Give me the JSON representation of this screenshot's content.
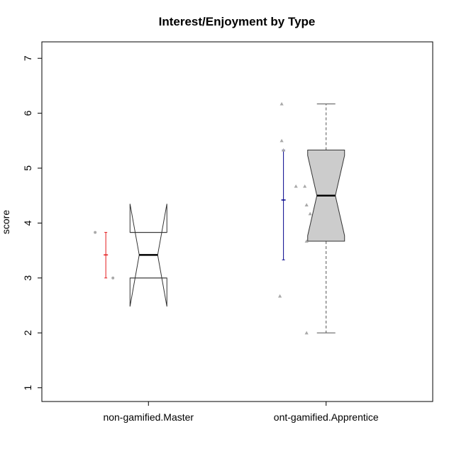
{
  "chart_data": {
    "type": "boxplot",
    "title": "Interest/Enjoyment by Type",
    "xlabel": "",
    "ylabel": "score",
    "ylim": [
      0.75,
      7.3
    ],
    "yticks": [
      1,
      2,
      3,
      4,
      5,
      6,
      7
    ],
    "categories": [
      "non-gamified.Master",
      "ont-gamified.Apprentice"
    ],
    "boxes": [
      {
        "category": "non-gamified.Master",
        "notched": true,
        "fill": "#ffffff",
        "stats": {
          "min": 3.0,
          "q1": 3.0,
          "median": 3.42,
          "q3": 3.83,
          "max": 3.83
        },
        "notch": [
          2.48,
          4.35
        ]
      },
      {
        "category": "ont-gamified.Apprentice",
        "notched": true,
        "fill": "#cccccc",
        "stats": {
          "min": 2.0,
          "q1": 3.67,
          "median": 4.5,
          "q3": 5.33,
          "max": 6.17
        },
        "notch": [
          3.77,
          5.23
        ]
      }
    ],
    "points": [
      {
        "category": "non-gamified.Master",
        "shape": "circle",
        "values": [
          3.83,
          3.0
        ],
        "offsets": [
          -0.3,
          -0.2
        ]
      },
      {
        "category": "ont-gamified.Apprentice",
        "shape": "triangle",
        "values": [
          6.17,
          5.5,
          5.33,
          4.67,
          4.67,
          4.33,
          4.17,
          3.67,
          2.67,
          2.0
        ],
        "offsets": [
          -0.25,
          -0.25,
          -0.24,
          -0.17,
          -0.12,
          -0.11,
          -0.09,
          -0.11,
          -0.26,
          -0.11
        ]
      }
    ],
    "error_bars": [
      {
        "category": "non-gamified.Master",
        "color": "#e41a1c",
        "mean": 3.42,
        "lower": 3.0,
        "upper": 3.83
      },
      {
        "category": "ont-gamified.Apprentice",
        "color": "#00008b",
        "mean": 4.42,
        "lower": 3.33,
        "upper": 5.33
      }
    ],
    "grid": false,
    "legend": "none"
  }
}
